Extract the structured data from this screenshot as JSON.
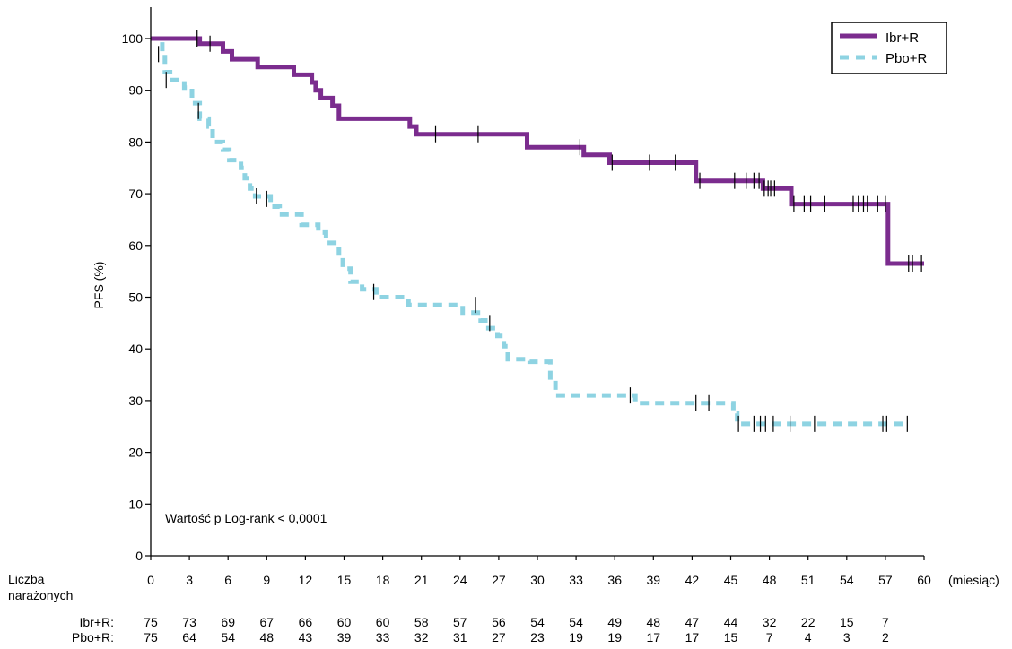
{
  "chart_data": {
    "type": "line",
    "title": "",
    "xlabel": "(miesiąc)",
    "ylabel": "PFS (%)",
    "xlim": [
      0,
      60
    ],
    "ylim": [
      0,
      100
    ],
    "x_ticks": [
      0,
      3,
      6,
      9,
      12,
      15,
      18,
      21,
      24,
      27,
      30,
      33,
      36,
      39,
      42,
      45,
      48,
      51,
      54,
      57,
      60
    ],
    "y_ticks": [
      0,
      10,
      20,
      30,
      40,
      50,
      60,
      70,
      80,
      90,
      100
    ],
    "legend_position": "top-right",
    "grid": false,
    "annotation": "Wartość p Log-rank < 0,0001",
    "series": [
      {
        "name": "Ibr+R",
        "color": "#7B2C8E",
        "style": "solid",
        "steps": [
          [
            0,
            100
          ],
          [
            3.8,
            100
          ],
          [
            3.8,
            99
          ],
          [
            5.6,
            99
          ],
          [
            5.6,
            97.5
          ],
          [
            6.3,
            97.5
          ],
          [
            6.3,
            96
          ],
          [
            8.3,
            96
          ],
          [
            8.3,
            94.5
          ],
          [
            11.1,
            94.5
          ],
          [
            11.1,
            93
          ],
          [
            12.5,
            93
          ],
          [
            12.5,
            91.5
          ],
          [
            12.8,
            91.5
          ],
          [
            12.8,
            90
          ],
          [
            13.2,
            90
          ],
          [
            13.2,
            88.5
          ],
          [
            14.1,
            88.5
          ],
          [
            14.1,
            87
          ],
          [
            14.6,
            87
          ],
          [
            14.6,
            84.5
          ],
          [
            20.1,
            84.5
          ],
          [
            20.1,
            83
          ],
          [
            20.6,
            83
          ],
          [
            20.6,
            81.5
          ],
          [
            29.2,
            81.5
          ],
          [
            29.2,
            79
          ],
          [
            33.6,
            79
          ],
          [
            33.6,
            77.5
          ],
          [
            35.6,
            77.5
          ],
          [
            35.6,
            76
          ],
          [
            42.3,
            76
          ],
          [
            42.3,
            72.5
          ],
          [
            47.5,
            72.5
          ],
          [
            47.5,
            71
          ],
          [
            49.7,
            71
          ],
          [
            49.7,
            68
          ],
          [
            57.2,
            68
          ],
          [
            57.2,
            56.5
          ],
          [
            60,
            56.5
          ]
        ],
        "censored": [
          [
            3.6,
            100
          ],
          [
            4.6,
            99
          ],
          [
            22.1,
            81.5
          ],
          [
            25.4,
            81.5
          ],
          [
            33.3,
            79
          ],
          [
            35.8,
            76
          ],
          [
            38.7,
            76
          ],
          [
            40.7,
            76
          ],
          [
            42.6,
            72.5
          ],
          [
            45.3,
            72.5
          ],
          [
            46.2,
            72.5
          ],
          [
            46.8,
            72.5
          ],
          [
            47.2,
            72.5
          ],
          [
            47.6,
            71
          ],
          [
            47.9,
            71
          ],
          [
            48.1,
            71
          ],
          [
            48.4,
            71
          ],
          [
            49.9,
            68
          ],
          [
            50.7,
            68
          ],
          [
            51.2,
            68
          ],
          [
            52.3,
            68
          ],
          [
            54.5,
            68
          ],
          [
            54.9,
            68
          ],
          [
            55.3,
            68
          ],
          [
            55.6,
            68
          ],
          [
            56.4,
            68
          ],
          [
            57.0,
            68
          ],
          [
            58.8,
            56.5
          ],
          [
            59.1,
            56.5
          ],
          [
            59.8,
            56.5
          ]
        ]
      },
      {
        "name": "Pbo+R",
        "color": "#8ED3E2",
        "style": "dashed",
        "steps": [
          [
            0,
            100
          ],
          [
            0.9,
            100
          ],
          [
            0.9,
            97
          ],
          [
            1.1,
            97
          ],
          [
            1.1,
            93.5
          ],
          [
            1.5,
            93.5
          ],
          [
            1.5,
            92
          ],
          [
            2.6,
            92
          ],
          [
            2.6,
            90.5
          ],
          [
            3.2,
            90.5
          ],
          [
            3.2,
            87.5
          ],
          [
            3.8,
            87.5
          ],
          [
            3.8,
            84.5
          ],
          [
            4.5,
            84.5
          ],
          [
            4.5,
            83
          ],
          [
            4.8,
            83
          ],
          [
            4.8,
            80
          ],
          [
            5.6,
            80
          ],
          [
            5.6,
            78.5
          ],
          [
            6.1,
            78.5
          ],
          [
            6.1,
            76.5
          ],
          [
            7.0,
            76.5
          ],
          [
            7.0,
            75
          ],
          [
            7.3,
            75
          ],
          [
            7.3,
            73
          ],
          [
            7.7,
            73
          ],
          [
            7.7,
            71
          ],
          [
            8.1,
            71
          ],
          [
            8.1,
            69.5
          ],
          [
            9.3,
            69.5
          ],
          [
            9.3,
            67.5
          ],
          [
            10.0,
            67.5
          ],
          [
            10.0,
            66
          ],
          [
            11.7,
            66
          ],
          [
            11.7,
            64
          ],
          [
            13.0,
            64
          ],
          [
            13.0,
            62.5
          ],
          [
            13.6,
            62.5
          ],
          [
            13.6,
            60.5
          ],
          [
            14.6,
            60.5
          ],
          [
            14.6,
            58
          ],
          [
            14.9,
            58
          ],
          [
            14.9,
            55.5
          ],
          [
            15.5,
            55.5
          ],
          [
            15.5,
            53
          ],
          [
            16.4,
            53
          ],
          [
            16.4,
            51.5
          ],
          [
            17.5,
            51.5
          ],
          [
            17.5,
            50
          ],
          [
            20.0,
            50
          ],
          [
            20.0,
            48.5
          ],
          [
            24.2,
            48.5
          ],
          [
            24.2,
            47
          ],
          [
            25.6,
            47
          ],
          [
            25.6,
            45.5
          ],
          [
            26.2,
            45.5
          ],
          [
            26.2,
            44
          ],
          [
            26.9,
            44
          ],
          [
            26.9,
            42.5
          ],
          [
            27.4,
            42.5
          ],
          [
            27.4,
            40.5
          ],
          [
            27.7,
            40.5
          ],
          [
            27.7,
            38
          ],
          [
            29.4,
            38
          ],
          [
            29.4,
            37.5
          ],
          [
            31.0,
            37.5
          ],
          [
            31.0,
            34
          ],
          [
            31.4,
            34
          ],
          [
            31.4,
            31
          ],
          [
            37.6,
            31
          ],
          [
            37.6,
            29.5
          ],
          [
            45.2,
            29.5
          ],
          [
            45.2,
            27.5
          ],
          [
            45.5,
            27.5
          ],
          [
            45.5,
            25.5
          ],
          [
            58.7,
            25.5
          ]
        ],
        "censored": [
          [
            0.6,
            97
          ],
          [
            1.2,
            92
          ],
          [
            3.7,
            86
          ],
          [
            8.2,
            69.5
          ],
          [
            9.0,
            69
          ],
          [
            17.3,
            51
          ],
          [
            25.2,
            48.5
          ],
          [
            26.3,
            45
          ],
          [
            37.2,
            31
          ],
          [
            42.3,
            29.5
          ],
          [
            43.3,
            29.5
          ],
          [
            45.6,
            25.5
          ],
          [
            46.8,
            25.5
          ],
          [
            47.3,
            25.5
          ],
          [
            47.7,
            25.5
          ],
          [
            48.3,
            25.5
          ],
          [
            49.6,
            25.5
          ],
          [
            51.5,
            25.5
          ],
          [
            56.8,
            25.5
          ],
          [
            57.1,
            25.5
          ],
          [
            58.7,
            25.5
          ]
        ]
      }
    ]
  },
  "risk_table": {
    "header_line1": "Liczba",
    "header_line2": "narażonych",
    "rows": [
      {
        "label": "Ibr+R:",
        "values": [
          "75",
          "73",
          "69",
          "67",
          "66",
          "60",
          "60",
          "58",
          "57",
          "56",
          "54",
          "54",
          "49",
          "48",
          "47",
          "44",
          "32",
          "22",
          "15",
          "7"
        ]
      },
      {
        "label": "Pbo+R:",
        "values": [
          "75",
          "64",
          "54",
          "48",
          "43",
          "39",
          "33",
          "32",
          "31",
          "27",
          "23",
          "19",
          "19",
          "17",
          "17",
          "15",
          "7",
          "4",
          "3",
          "2"
        ]
      }
    ]
  }
}
